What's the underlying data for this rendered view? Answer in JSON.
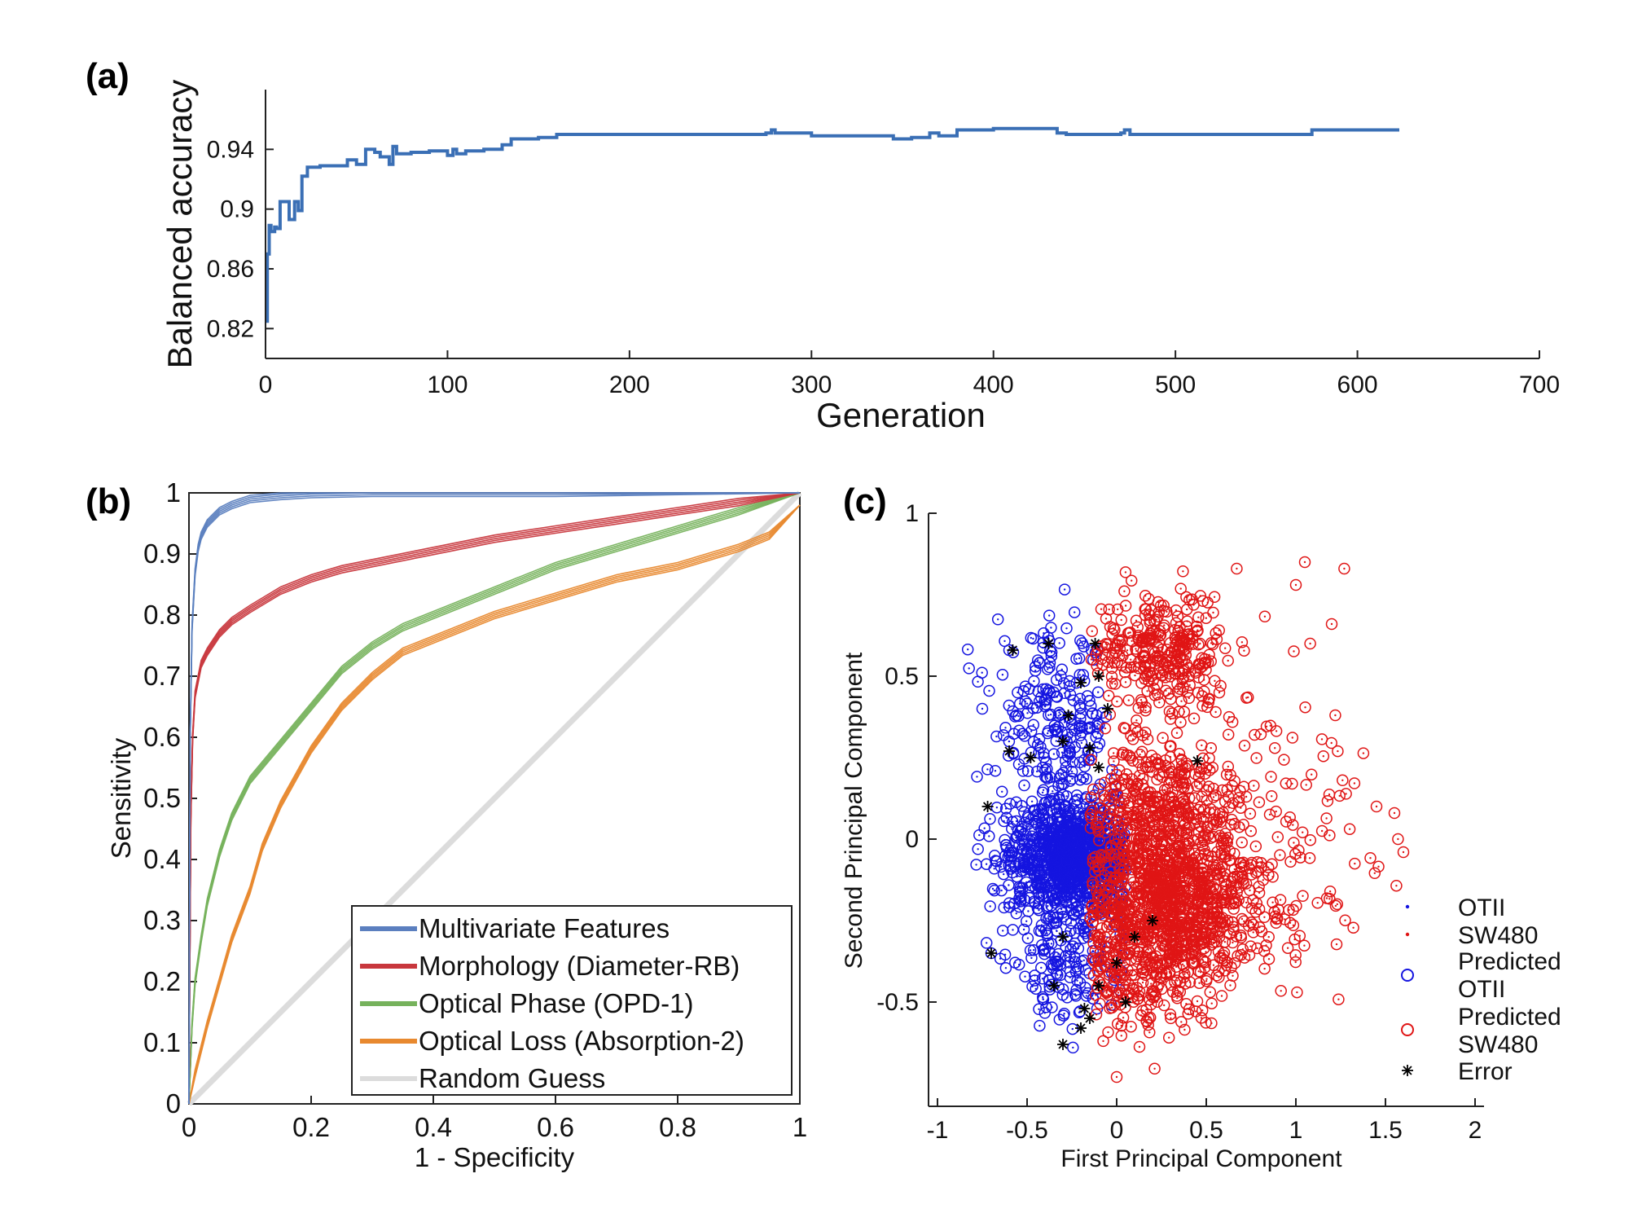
{
  "panels": {
    "a": {
      "label": "(a)"
    },
    "b": {
      "label": "(b)"
    },
    "c": {
      "label": "(c)"
    }
  },
  "chart_data": [
    {
      "id": "a",
      "type": "line",
      "xlabel": "Generation",
      "ylabel": "Balanced accuracy",
      "xlim": [
        0,
        700
      ],
      "ylim": [
        0.8,
        0.98
      ],
      "xticks": [
        0,
        100,
        200,
        300,
        400,
        500,
        600,
        700
      ],
      "yticks": [
        0.82,
        0.86,
        0.9,
        0.94
      ],
      "ytick_labels": [
        "0.82",
        "0.86",
        "0.9",
        "0.94"
      ],
      "color": "#3a6fb5",
      "series": [
        {
          "x": [
            0,
            1,
            2,
            3,
            5,
            6,
            8,
            10,
            13,
            16,
            18,
            20,
            23,
            30,
            40,
            45,
            50,
            55,
            60,
            63,
            68,
            70,
            72,
            80,
            90,
            100,
            103,
            105,
            110,
            120,
            130,
            135,
            140,
            150,
            160,
            200,
            260,
            275,
            278,
            280,
            290,
            300,
            340,
            345,
            350,
            355,
            360,
            365,
            370,
            380,
            400,
            430,
            435,
            440,
            450,
            470,
            472,
            475,
            490,
            500,
            570,
            575,
            600,
            623
          ],
          "y": [
            0.825,
            0.87,
            0.889,
            0.885,
            0.888,
            0.887,
            0.905,
            0.905,
            0.893,
            0.905,
            0.899,
            0.922,
            0.928,
            0.929,
            0.929,
            0.933,
            0.93,
            0.94,
            0.938,
            0.935,
            0.93,
            0.942,
            0.937,
            0.938,
            0.939,
            0.936,
            0.94,
            0.937,
            0.939,
            0.94,
            0.943,
            0.947,
            0.947,
            0.948,
            0.95,
            0.95,
            0.95,
            0.951,
            0.953,
            0.951,
            0.951,
            0.949,
            0.949,
            0.947,
            0.947,
            0.948,
            0.948,
            0.951,
            0.949,
            0.953,
            0.954,
            0.954,
            0.951,
            0.95,
            0.95,
            0.951,
            0.953,
            0.95,
            0.95,
            0.95,
            0.95,
            0.953,
            0.953,
            0.953
          ]
        }
      ]
    },
    {
      "id": "b",
      "type": "line",
      "xlabel": "1 - Specificity",
      "ylabel": "Sensitivity",
      "xlim": [
        0,
        1
      ],
      "ylim": [
        0,
        1
      ],
      "xticks": [
        0,
        0.2,
        0.4,
        0.6,
        0.8,
        1
      ],
      "xtick_labels": [
        "0",
        "0.2",
        "0.4",
        "0.6",
        "0.8",
        "1"
      ],
      "yticks": [
        0,
        0.1,
        0.2,
        0.3,
        0.4,
        0.5,
        0.6,
        0.7,
        0.8,
        0.9,
        1
      ],
      "ytick_labels": [
        "0",
        "0.1",
        "0.2",
        "0.3",
        "0.4",
        "0.5",
        "0.6",
        "0.7",
        "0.8",
        "0.9",
        "1"
      ],
      "legend_position": "bottom-right",
      "series": [
        {
          "name": "Multivariate Features",
          "color": "#5b7fbf",
          "x": [
            0,
            0.002,
            0.005,
            0.01,
            0.015,
            0.02,
            0.03,
            0.04,
            0.05,
            0.07,
            0.1,
            0.15,
            0.2,
            0.3,
            0.5,
            0.6,
            1
          ],
          "y": [
            0,
            0.6,
            0.78,
            0.87,
            0.91,
            0.93,
            0.95,
            0.96,
            0.97,
            0.98,
            0.99,
            0.995,
            0.998,
            1,
            1,
            1,
            1
          ]
        },
        {
          "name": "Morphology (Diameter-RB)",
          "color": "#c8373d",
          "x": [
            0,
            0.003,
            0.006,
            0.01,
            0.02,
            0.03,
            0.05,
            0.07,
            0.1,
            0.15,
            0.2,
            0.25,
            0.3,
            0.4,
            0.5,
            0.6,
            0.7,
            0.8,
            0.9,
            1
          ],
          "y": [
            0,
            0.47,
            0.6,
            0.67,
            0.72,
            0.74,
            0.77,
            0.79,
            0.81,
            0.84,
            0.86,
            0.875,
            0.885,
            0.905,
            0.925,
            0.94,
            0.955,
            0.97,
            0.985,
            1
          ]
        },
        {
          "name": "Optical Phase (OPD-1)",
          "color": "#76b25c",
          "x": [
            0,
            0.005,
            0.01,
            0.02,
            0.03,
            0.05,
            0.07,
            0.1,
            0.15,
            0.2,
            0.25,
            0.3,
            0.35,
            0.4,
            0.5,
            0.6,
            0.7,
            0.8,
            0.9,
            1
          ],
          "y": [
            0,
            0.13,
            0.2,
            0.27,
            0.33,
            0.41,
            0.47,
            0.53,
            0.59,
            0.65,
            0.71,
            0.75,
            0.78,
            0.8,
            0.84,
            0.88,
            0.91,
            0.94,
            0.97,
            1
          ]
        },
        {
          "name": "Optical Loss (Absorption-2)",
          "color": "#e8892f",
          "x": [
            0,
            0.01,
            0.02,
            0.03,
            0.05,
            0.07,
            0.1,
            0.12,
            0.15,
            0.2,
            0.25,
            0.3,
            0.35,
            0.4,
            0.5,
            0.6,
            0.7,
            0.8,
            0.9,
            0.95,
            1
          ],
          "y": [
            0,
            0.05,
            0.09,
            0.13,
            0.2,
            0.27,
            0.35,
            0.42,
            0.49,
            0.58,
            0.65,
            0.7,
            0.74,
            0.76,
            0.8,
            0.83,
            0.86,
            0.88,
            0.91,
            0.93,
            0.98
          ]
        },
        {
          "name": "Random Guess",
          "color": "#dcdcdc",
          "x": [
            0,
            1
          ],
          "y": [
            0,
            1
          ]
        }
      ]
    },
    {
      "id": "c",
      "type": "scatter",
      "xlabel": "First Principal Component",
      "ylabel": "Second Principal Component",
      "xlim": [
        -1.05,
        2.05
      ],
      "ylim": [
        -0.82,
        1.0
      ],
      "xticks": [
        -1,
        -0.5,
        0,
        0.5,
        1,
        1.5,
        2
      ],
      "xtick_labels": [
        "-1",
        "-0.5",
        "0",
        "0.5",
        "1",
        "1.5",
        "2"
      ],
      "yticks": [
        -0.5,
        0,
        0.5,
        1
      ],
      "ytick_labels": [
        "-0.5",
        "0",
        "0.5",
        "1"
      ],
      "legend_position": "bottom-right",
      "legend": [
        {
          "label": "OTII",
          "marker": "dot",
          "color": "#1515e0"
        },
        {
          "label": "SW480",
          "marker": "dot",
          "color": "#e01515"
        },
        {
          "label": "Predicted OTII",
          "line1": "Predicted",
          "line2": "OTII",
          "marker": "circle",
          "color": "#1515e0"
        },
        {
          "label": "Predicted SW480",
          "line1": "Predicted",
          "line2": "SW480",
          "marker": "circle",
          "color": "#e01515"
        },
        {
          "label": "Error",
          "marker": "asterisk",
          "color": "#000000"
        }
      ],
      "clusters": [
        {
          "class": "OTII",
          "color": "#1515e0",
          "cx": -0.25,
          "cy": -0.05,
          "sx": 0.17,
          "sy": 0.09,
          "n": 950
        },
        {
          "class": "OTII",
          "color": "#1515e0",
          "cx": -0.35,
          "cy": 0.35,
          "sx": 0.16,
          "sy": 0.14,
          "n": 220
        },
        {
          "class": "OTII",
          "color": "#1515e0",
          "cx": -0.3,
          "cy": -0.38,
          "sx": 0.14,
          "sy": 0.1,
          "n": 150
        },
        {
          "class": "SW480",
          "color": "#e01515",
          "cx": 0.3,
          "cy": -0.22,
          "sx": 0.25,
          "sy": 0.12,
          "n": 900
        },
        {
          "class": "SW480",
          "color": "#e01515",
          "cx": 0.25,
          "cy": 0.08,
          "sx": 0.22,
          "sy": 0.12,
          "n": 450
        },
        {
          "class": "SW480",
          "color": "#e01515",
          "cx": 0.25,
          "cy": 0.58,
          "sx": 0.18,
          "sy": 0.09,
          "n": 300
        },
        {
          "class": "SW480",
          "color": "#e01515",
          "cx": 0.8,
          "cy": 0.05,
          "sx": 0.3,
          "sy": 0.22,
          "n": 150
        },
        {
          "class": "SW480",
          "color": "#e01515",
          "cx": 0.1,
          "cy": -0.45,
          "sx": 0.18,
          "sy": 0.08,
          "n": 120
        }
      ],
      "outliers": [
        {
          "x": 1.05,
          "y": 0.85,
          "class": "SW480"
        },
        {
          "x": 1.27,
          "y": 0.83,
          "class": "SW480"
        },
        {
          "x": 0.67,
          "y": 0.83,
          "class": "SW480"
        },
        {
          "x": 1.0,
          "y": 0.78,
          "class": "SW480"
        },
        {
          "x": 1.2,
          "y": 0.66,
          "class": "SW480"
        },
        {
          "x": 1.08,
          "y": 0.6,
          "class": "SW480"
        },
        {
          "x": 1.22,
          "y": 0.38,
          "class": "SW480"
        },
        {
          "x": 1.55,
          "y": 0.08,
          "class": "SW480"
        },
        {
          "x": 1.6,
          "y": -0.04,
          "class": "SW480"
        },
        {
          "x": 1.57,
          "y": 0.0,
          "class": "SW480"
        },
        {
          "x": 1.45,
          "y": 0.1,
          "class": "SW480"
        },
        {
          "x": 0.0,
          "y": -0.73,
          "class": "SW480"
        },
        {
          "x": -0.7,
          "y": -0.35,
          "class": "OTII"
        },
        {
          "x": -0.75,
          "y": 0.4,
          "class": "OTII"
        },
        {
          "x": -0.6,
          "y": 0.58,
          "class": "OTII"
        }
      ],
      "errors": [
        {
          "x": -0.58,
          "y": 0.58
        },
        {
          "x": -0.38,
          "y": 0.6
        },
        {
          "x": -0.12,
          "y": 0.6
        },
        {
          "x": -0.1,
          "y": 0.5
        },
        {
          "x": -0.2,
          "y": 0.48
        },
        {
          "x": -0.27,
          "y": 0.38
        },
        {
          "x": -0.05,
          "y": 0.4
        },
        {
          "x": -0.3,
          "y": 0.3
        },
        {
          "x": -0.15,
          "y": 0.28
        },
        {
          "x": -0.1,
          "y": 0.22
        },
        {
          "x": -0.6,
          "y": 0.27
        },
        {
          "x": -0.48,
          "y": 0.25
        },
        {
          "x": 0.45,
          "y": 0.24
        },
        {
          "x": -0.72,
          "y": 0.1
        },
        {
          "x": -0.7,
          "y": -0.35
        },
        {
          "x": -0.3,
          "y": -0.3
        },
        {
          "x": -0.15,
          "y": -0.55
        },
        {
          "x": -0.2,
          "y": -0.58
        },
        {
          "x": -0.1,
          "y": -0.45
        },
        {
          "x": -0.3,
          "y": -0.63
        },
        {
          "x": 0.0,
          "y": -0.38
        },
        {
          "x": 0.05,
          "y": -0.5
        },
        {
          "x": -0.35,
          "y": -0.45
        },
        {
          "x": -0.18,
          "y": -0.52
        },
        {
          "x": 0.1,
          "y": -0.3
        },
        {
          "x": 0.2,
          "y": -0.25
        }
      ]
    }
  ]
}
